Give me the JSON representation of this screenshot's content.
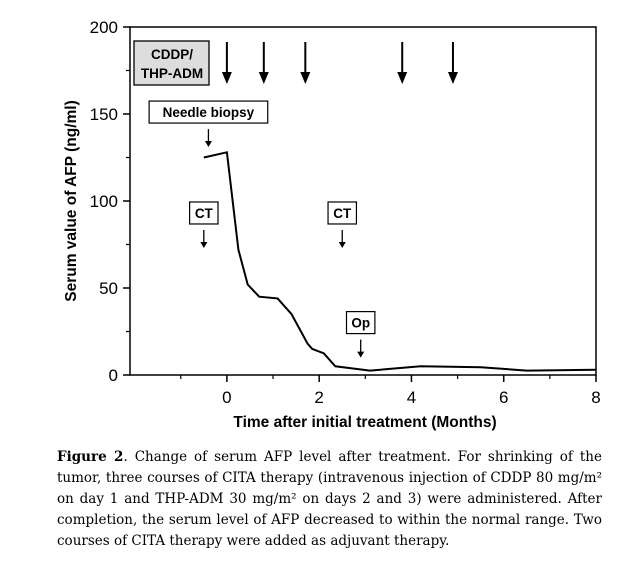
{
  "chart_data": {
    "type": "line",
    "title": "",
    "xlabel": "Time after initial treatment (Months)",
    "ylabel": "Serum value of AFP (ng/ml)",
    "xlim": [
      -2.1,
      8
    ],
    "ylim": [
      0,
      200
    ],
    "x_ticks": [
      0,
      2,
      4,
      6,
      8
    ],
    "y_ticks": [
      0,
      50,
      100,
      150,
      200
    ],
    "grid": false,
    "series": [
      {
        "name": "AFP",
        "x": [
          -0.5,
          0.0,
          0.25,
          0.45,
          0.7,
          1.1,
          1.4,
          1.75,
          1.85,
          2.1,
          2.35,
          3.1,
          4.2,
          5.5,
          6.5,
          8.0
        ],
        "y": [
          125,
          128,
          72,
          52,
          45,
          44,
          35,
          18,
          15,
          12.5,
          5,
          2.5,
          5,
          4.5,
          2.5,
          3
        ]
      }
    ],
    "chemo_label": "CDDP/\nTHP-ADM",
    "chemo_label_lines": [
      "CDDP/",
      "THP-ADM"
    ],
    "chemo_months": [
      0.0,
      0.8,
      1.7,
      3.8,
      4.9
    ],
    "annotations": [
      {
        "text": "Needle biopsy",
        "x": -0.4,
        "y_value": 131
      },
      {
        "text": "CT",
        "x": -0.5,
        "y_value": 73
      },
      {
        "text": "CT",
        "x": 2.5,
        "y_value": 73
      },
      {
        "text": "Op",
        "x": 2.9,
        "y_value": 10
      }
    ]
  },
  "caption": {
    "label": "Figure 2",
    "text": ". Change of serum AFP level after treatment. For shrinking of the tumor, three courses of CITA therapy (intravenous injection of CDDP 80 mg/m² on day 1 and THP-ADM 30 mg/m² on days 2 and 3) were administered. After completion, the serum level of AFP decreased to within the normal range. Two courses of CITA therapy were added as adjuvant therapy."
  }
}
